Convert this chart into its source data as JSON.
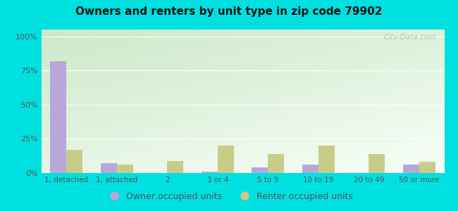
{
  "title": "Owners and renters by unit type in zip code 79902",
  "categories": [
    "1, detached",
    "1, attached",
    "2",
    "3 or 4",
    "5 to 9",
    "10 to 19",
    "20 to 49",
    "50 or more"
  ],
  "owner_values": [
    82,
    7,
    0,
    1,
    4,
    6,
    0,
    6
  ],
  "renter_values": [
    17,
    6,
    9,
    20,
    14,
    20,
    14,
    8
  ],
  "owner_color": "#b8a8d8",
  "renter_color": "#c8cc88",
  "outer_bg": "#00e0e0",
  "yticks": [
    0,
    25,
    50,
    75,
    100
  ],
  "ytick_labels": [
    "0%",
    "25%",
    "50%",
    "75%",
    "100%"
  ],
  "ylim": [
    0,
    105
  ],
  "legend_owner": "Owner occupied units",
  "legend_renter": "Renter occupied units",
  "watermark": "City-Data.com",
  "bar_width": 0.32,
  "bg_left_top": "#cce8c8",
  "bg_right_bottom": "#f5fdf5"
}
